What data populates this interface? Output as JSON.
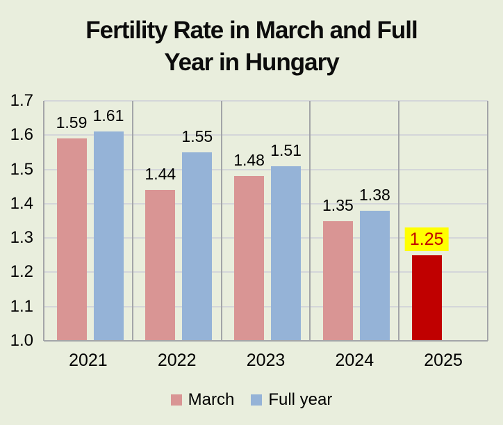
{
  "title": {
    "line1": "Fertility Rate in March and Full",
    "line2": "Year in Hungary",
    "full": "Fertility Rate in March and Full Year in Hungary"
  },
  "chart_data": {
    "type": "bar",
    "title": "Fertility Rate in March and Full Year in Hungary",
    "categories": [
      "2021",
      "2022",
      "2023",
      "2024",
      "2025"
    ],
    "series": [
      {
        "name": "March",
        "color": "#d99594",
        "values": [
          1.59,
          1.44,
          1.48,
          1.35,
          1.25
        ]
      },
      {
        "name": "Full year",
        "color": "#95b3d7",
        "values": [
          1.61,
          1.55,
          1.51,
          1.38,
          null
        ]
      }
    ],
    "data_labels": {
      "march": [
        "1.59",
        "1.44",
        "1.48",
        "1.35",
        "1.25"
      ],
      "full_year": [
        "1.61",
        "1.55",
        "1.51",
        "1.38",
        null
      ]
    },
    "highlight": {
      "series_index": 0,
      "category_index": 4,
      "bar_color": "#c00000",
      "label_bg": "#ffff00",
      "label_color": "#c00000",
      "label": "1.25"
    },
    "ylim": [
      1.0,
      1.7
    ],
    "ytick_step": 0.1,
    "ytick_labels": [
      "1.0",
      "1.1",
      "1.2",
      "1.3",
      "1.4",
      "1.5",
      "1.6",
      "1.7"
    ],
    "grid": true,
    "legend_position": "bottom",
    "legend": [
      "March",
      "Full year"
    ]
  },
  "colors": {
    "background": "#e9eedd",
    "grid_light": "#d4d6d9",
    "grid_dark": "#a3a5a8",
    "text": "#000000"
  }
}
